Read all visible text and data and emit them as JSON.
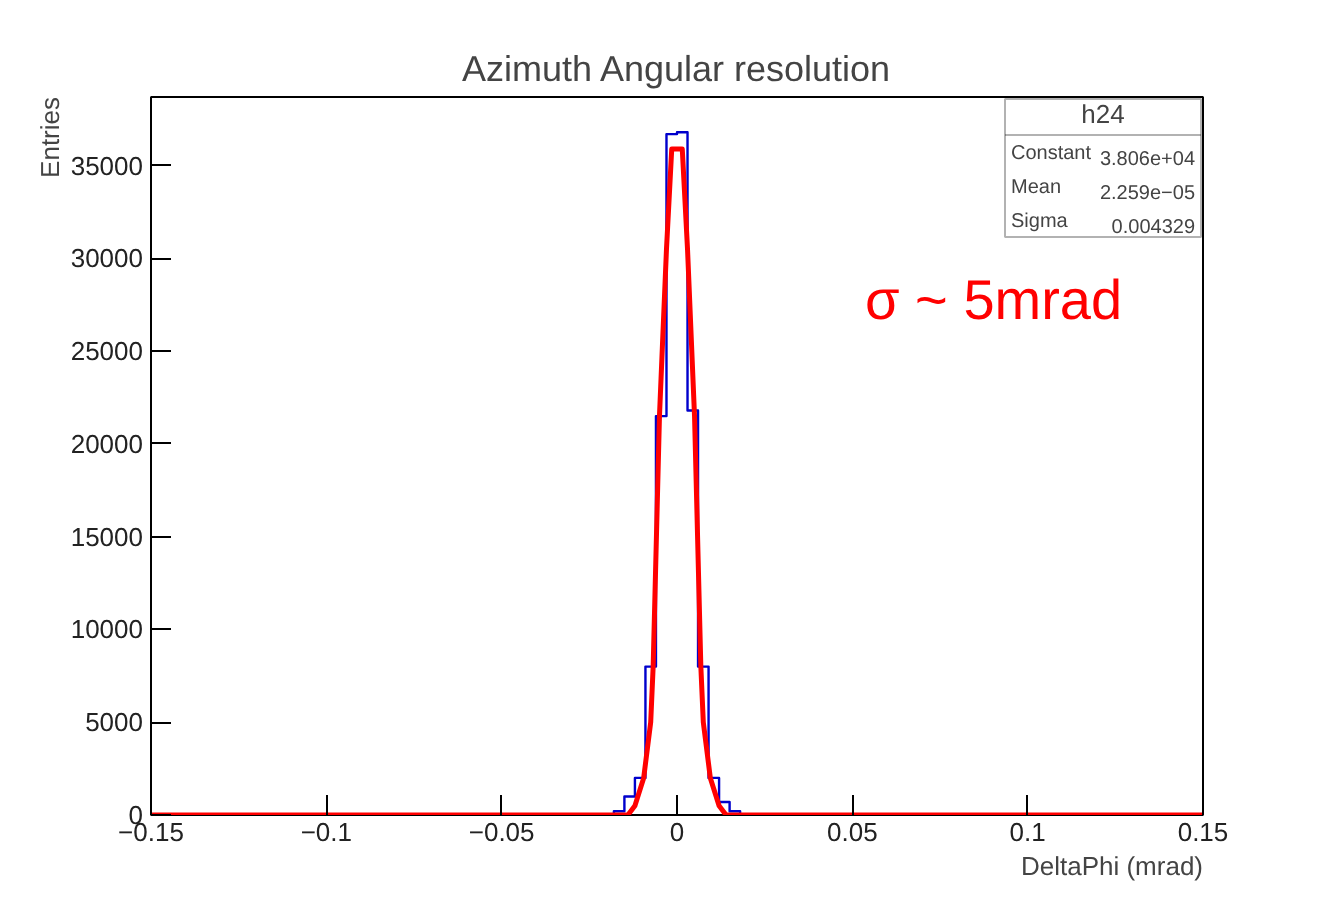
{
  "chart_data": {
    "type": "histogram",
    "title": "Azimuth Angular resolution",
    "xlabel": "DeltaPhi (mrad)",
    "ylabel": "Entries",
    "xlim": [
      -0.15,
      0.15
    ],
    "ylim": [
      0,
      38700
    ],
    "xticks": [
      {
        "value": -0.15,
        "label": "−0.15"
      },
      {
        "value": -0.1,
        "label": "−0.1"
      },
      {
        "value": -0.05,
        "label": "−0.05"
      },
      0,
      0.05,
      0.1,
      0.15
    ],
    "yticks": [
      0,
      5000,
      10000,
      15000,
      20000,
      25000,
      30000,
      35000
    ],
    "grid": false,
    "series": [
      {
        "type": "histogram",
        "color": "#0000cc",
        "bins": [
          -0.15,
          -0.018,
          -0.015,
          -0.012,
          -0.009,
          -0.006,
          -0.003,
          0,
          0.003,
          0.006,
          0.009,
          0.012,
          0.015,
          0.018,
          0.15
        ],
        "values": [
          0,
          200,
          1000,
          2000,
          8000,
          21500,
          36700,
          36800,
          21800,
          8000,
          2000,
          700,
          200,
          0
        ]
      },
      {
        "type": "line",
        "color": "#ff0000",
        "x": [
          -0.15,
          -0.014,
          -0.012,
          -0.0095,
          -0.0075,
          -0.0068,
          -0.005,
          -0.003,
          -0.0015,
          0.0015,
          0.003,
          0.005,
          0.0068,
          0.0075,
          0.0095,
          0.012,
          0.014,
          0.15
        ],
        "values": [
          0,
          0,
          500,
          2000,
          5000,
          8000,
          21500,
          30500,
          35900,
          35900,
          30500,
          21500,
          8000,
          5000,
          2000,
          500,
          0,
          0
        ]
      }
    ],
    "annotations": [
      "h24",
      "Constant",
      "3.806e+04",
      "Mean",
      "2.259e−05",
      "Sigma",
      "0.004329",
      "σ ~ 5mrad"
    ]
  }
}
